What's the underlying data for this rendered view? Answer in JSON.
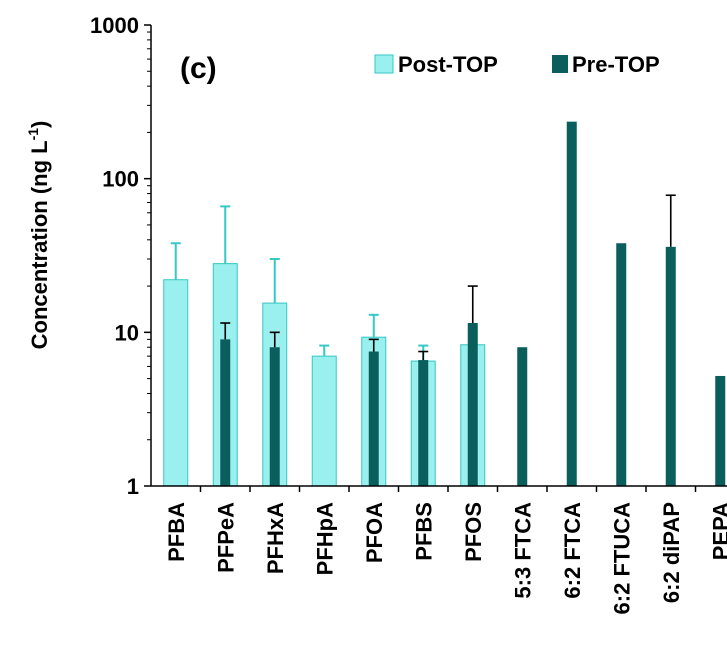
{
  "chart_data": {
    "type": "bar",
    "panel_label": "(c)",
    "ylabel": "Concentration (ng L",
    "ylabel_superscript": "-1",
    "ylabel_close": ")",
    "yscale": "log",
    "ylim": [
      1,
      1000
    ],
    "yticks": [
      "1",
      "10",
      "100",
      "1000"
    ],
    "categories": [
      "PFBA",
      "PFPeA",
      "PFHxA",
      "PFHpA",
      "PFOA",
      "PFBS",
      "PFOS",
      "5:3 FTCA",
      "6:2 FTCA",
      "6:2 FTUCA",
      "6:2 diPAP",
      "PEPA"
    ],
    "legend_position": "top-right",
    "series": [
      {
        "name": "Post-TOP",
        "color": "#99f0ee",
        "edge": "#35c8c5",
        "values": [
          22,
          28,
          15.5,
          7,
          9.3,
          6.5,
          8.3,
          null,
          null,
          null,
          null,
          null
        ],
        "err_upper": [
          38,
          66,
          30,
          8.2,
          13,
          8.2,
          null,
          null,
          null,
          null,
          null,
          null
        ]
      },
      {
        "name": "Pre-TOP",
        "color": "#0a5f5c",
        "edge": "#0a5f5c",
        "values": [
          null,
          9,
          8,
          null,
          7.5,
          6.6,
          11.5,
          8,
          235,
          38,
          36,
          null
        ],
        "err_upper": [
          null,
          11.5,
          10,
          null,
          9,
          7.5,
          20,
          null,
          null,
          null,
          78,
          null
        ]
      }
    ],
    "extra_marks": [
      {
        "category": "PEPA",
        "series": "Pre-TOP",
        "value": 5.2
      }
    ]
  }
}
